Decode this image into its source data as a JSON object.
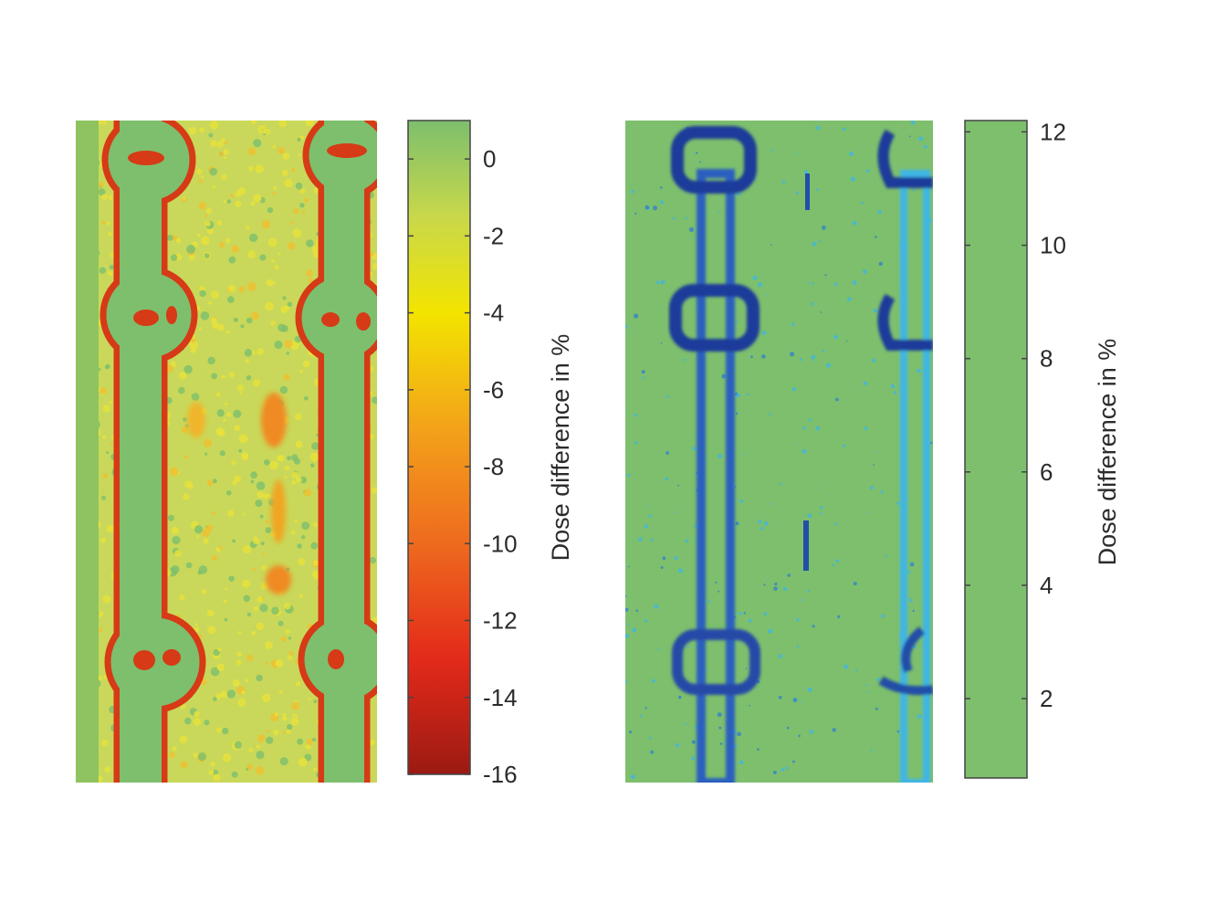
{
  "chart_data": [
    {
      "type": "heatmap",
      "panel": "left",
      "title": "",
      "colorbar": {
        "label": "Dose difference in %",
        "range": [
          -16,
          1
        ],
        "ticks": [
          0,
          -2,
          -4,
          -6,
          -8,
          -10,
          -12,
          -14,
          -16
        ],
        "tick_labels": [
          "0",
          "-2",
          "-4",
          "-6",
          "-8",
          "-10",
          "-12",
          "-14",
          "-16"
        ],
        "colormap": [
          {
            "value": 1,
            "color": "#7dbf6d"
          },
          {
            "value": -1.5,
            "color": "#c8d84a"
          },
          {
            "value": -4,
            "color": "#f3e400"
          },
          {
            "value": -7,
            "color": "#f3a21a"
          },
          {
            "value": -10,
            "color": "#ee6a1e"
          },
          {
            "value": -13,
            "color": "#e32a1a"
          },
          {
            "value": -16,
            "color": "#9b1a12"
          }
        ]
      },
      "colors": {
        "background": "#7dbf6d",
        "field": "#c9d85a",
        "noise": "#e8e23a",
        "edge": "#d63a16"
      }
    },
    {
      "type": "heatmap",
      "panel": "right",
      "title": "",
      "colorbar": {
        "label": "Dose difference in %",
        "range": [
          0.6,
          12.2
        ],
        "ticks": [
          2,
          4,
          6,
          8,
          10,
          12
        ],
        "tick_labels": [
          "2",
          "4",
          "6",
          "8",
          "10",
          "12"
        ],
        "colormap": [
          {
            "value": 0.6,
            "color": "#7dbf6d"
          },
          {
            "value": 2.5,
            "color": "#62c3b8"
          },
          {
            "value": 4.2,
            "color": "#2fbbe8"
          },
          {
            "value": 6.5,
            "color": "#2f7fd0"
          },
          {
            "value": 9.5,
            "color": "#234ea8"
          },
          {
            "value": 12.2,
            "color": "#1f2a6a"
          }
        ]
      },
      "colors": {
        "background": "#7dbf6d",
        "light": "#3fb6e6",
        "mid": "#2f7fd0",
        "dark": "#1e3a9a"
      }
    }
  ]
}
